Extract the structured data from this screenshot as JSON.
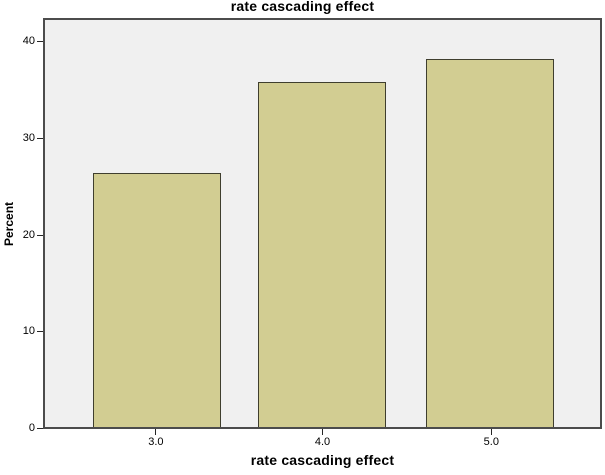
{
  "chart_data": {
    "type": "bar",
    "title": "rate cascading effect",
    "xlabel": "rate cascading effect",
    "ylabel": "Percent",
    "categories": [
      "3.0",
      "4.0",
      "5.0"
    ],
    "values": [
      26.4,
      35.9,
      38.2
    ],
    "y_ticks": [
      0,
      10,
      20,
      30,
      40
    ],
    "ylim": [
      0,
      42.5
    ],
    "grid": false,
    "legend": false,
    "colors": {
      "bar_fill": "#d2cd92",
      "bar_border": "#3f3e2e",
      "plot_background": "#f0f0f0",
      "frame_border": "#4c4c4c",
      "page_background": "#ffffff",
      "text": "#000000"
    }
  }
}
